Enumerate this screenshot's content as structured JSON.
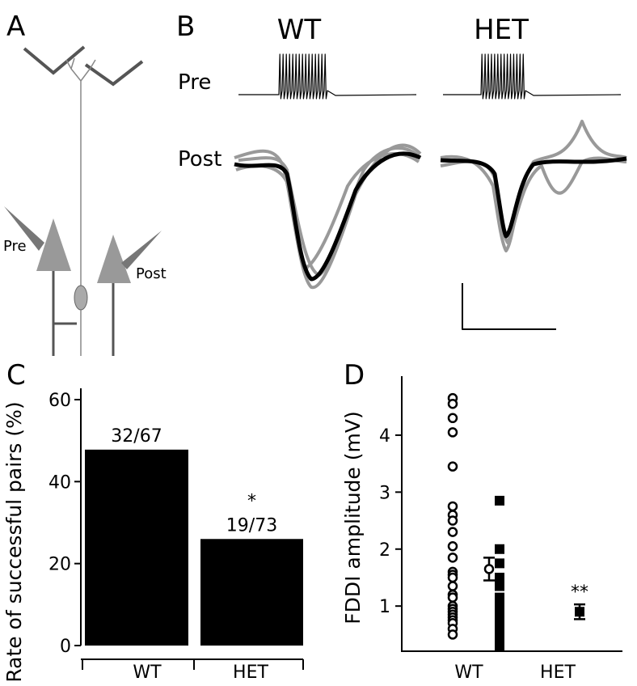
{
  "panels": {
    "a": "A",
    "b": "B",
    "wt": "WT",
    "het": "HET",
    "pre": "Pre",
    "post": "Post",
    "neuron_pre": "Pre",
    "neuron_post": "Post"
  },
  "chart_data": [
    {
      "type": "bar",
      "panel": "C",
      "ylabel": "Rate of successful pairs (%)",
      "categories": [
        "WT",
        "HET"
      ],
      "values": [
        47.8,
        26.0
      ],
      "value_labels": [
        "32/67",
        "19/73"
      ],
      "annotations": [
        "",
        "*"
      ],
      "color": "#000000",
      "ylim": [
        0,
        60
      ],
      "yticks": [
        0,
        20,
        40,
        60
      ]
    },
    {
      "type": "scatter",
      "panel": "D",
      "ylabel": "FDDI amplitude (mV)",
      "categories": [
        "WT",
        "HET"
      ],
      "groups": [
        {
          "marker": "circle",
          "values": [
            4.65,
            4.55,
            4.3,
            4.05,
            3.45,
            2.75,
            2.6,
            2.5,
            2.3,
            2.05,
            1.85,
            1.6,
            1.55,
            1.5,
            1.35,
            1.2,
            1.15,
            1.0,
            0.95,
            0.9,
            0.85,
            0.8,
            0.75,
            0.7,
            0.6,
            0.5
          ],
          "mean": 1.65,
          "error": 0.2
        },
        {
          "marker": "square",
          "values": [
            2.85,
            2.0,
            1.75,
            1.5,
            1.35,
            1.15,
            1.0,
            0.9,
            0.8,
            0.7,
            0.6,
            0.5,
            0.4,
            0.3
          ],
          "mean": 0.9,
          "error": 0.13,
          "annotation": "**"
        }
      ],
      "color": "#000000",
      "ylim": [
        0.25,
        5
      ],
      "yticks": [
        1,
        2,
        3,
        4
      ]
    }
  ]
}
